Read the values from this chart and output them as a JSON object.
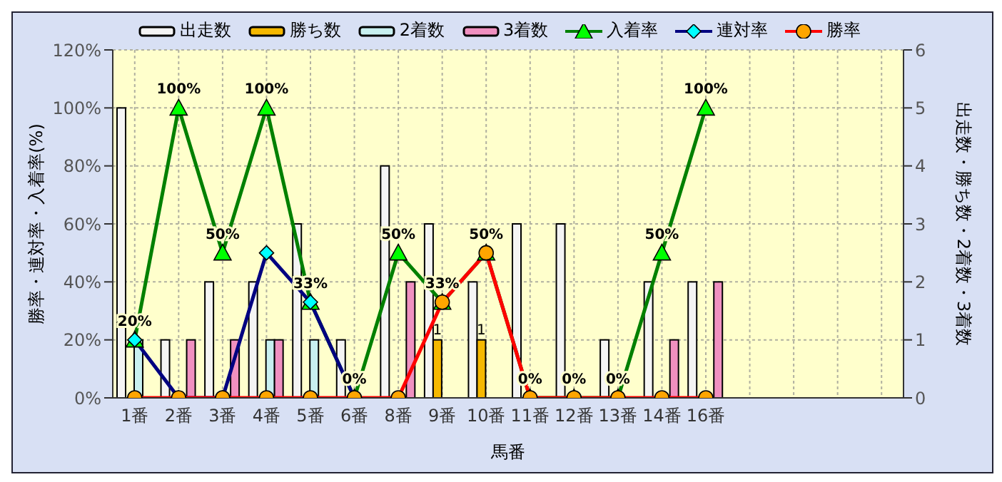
{
  "chart_data": {
    "type": "bar",
    "xlabel": "馬番",
    "ylabel": "勝率・連対率・入着率(%)",
    "y2label": "出走数・勝ち数・2着数・3着数",
    "categories": [
      "1番",
      "2番",
      "3番",
      "4番",
      "5番",
      "6番",
      "8番",
      "9番",
      "10番",
      "11番",
      "12番",
      "13番",
      "14番",
      "16番",
      null,
      null,
      null,
      null
    ],
    "series": [
      {
        "name": "出走数",
        "axis": "y2",
        "color": "#f4f4f4",
        "values": [
          5,
          1,
          2,
          2,
          3,
          1,
          4,
          3,
          2,
          3,
          3,
          1,
          2,
          2,
          null,
          null,
          null,
          null
        ]
      },
      {
        "name": "勝ち数",
        "axis": "y2",
        "color": "#f5b800",
        "values": [
          0,
          0,
          0,
          0,
          0,
          0,
          0,
          1,
          1,
          0,
          0,
          0,
          0,
          0,
          null,
          null,
          null,
          null
        ],
        "value_labels": [
          null,
          null,
          null,
          null,
          null,
          null,
          null,
          "1",
          "1",
          null,
          null,
          null,
          null,
          null,
          null,
          null,
          null,
          null
        ]
      },
      {
        "name": "2着数",
        "axis": "y2",
        "color": "#c8f0f0",
        "values": [
          1,
          0,
          0,
          1,
          1,
          0,
          0,
          0,
          0,
          0,
          0,
          0,
          0,
          0,
          null,
          null,
          null,
          null
        ]
      },
      {
        "name": "3着数",
        "axis": "y2",
        "color": "#f090c0",
        "values": [
          0,
          1,
          1,
          1,
          0,
          0,
          2,
          0,
          0,
          0,
          0,
          0,
          1,
          2,
          null,
          null,
          null,
          null
        ]
      },
      {
        "name": "入着率",
        "type": "line",
        "color": "#008000",
        "marker": "triangle",
        "values": [
          20,
          100,
          50,
          100,
          33,
          0,
          50,
          33,
          50,
          0,
          0,
          0,
          50,
          100,
          null,
          null,
          null,
          null
        ],
        "value_labels": [
          "20%",
          "100%",
          "50%",
          "100%",
          "33%",
          "0%",
          "50%",
          "33%",
          "50%",
          "0%",
          "0%",
          "0%",
          "50%",
          "100%",
          null,
          null,
          null,
          null
        ]
      },
      {
        "name": "連対率",
        "type": "line",
        "color": "#000080",
        "marker": "diamond",
        "values": [
          20,
          0,
          0,
          50,
          33,
          0,
          null,
          null,
          null,
          null,
          null,
          null,
          null,
          null,
          null,
          null,
          null,
          null
        ]
      },
      {
        "name": "勝率",
        "type": "line",
        "color": "#ff0000",
        "marker": "circle",
        "values": [
          0,
          0,
          0,
          0,
          0,
          0,
          0,
          33,
          50,
          0,
          0,
          0,
          0,
          0,
          null,
          null,
          null,
          null
        ]
      }
    ],
    "ylim": [
      0,
      120
    ],
    "yticks": [
      {
        "value": 0,
        "label": "0%"
      },
      {
        "value": 20,
        "label": "20%"
      },
      {
        "value": 40,
        "label": "40%"
      },
      {
        "value": 60,
        "label": "60%"
      },
      {
        "value": 80,
        "label": "80%"
      },
      {
        "value": 100,
        "label": "100%"
      },
      {
        "value": 120,
        "label": "120%"
      }
    ],
    "y2lim": [
      0,
      6
    ],
    "y2ticks": [
      0,
      1,
      2,
      3,
      4,
      5,
      6
    ],
    "grid": true,
    "legend": "top"
  }
}
